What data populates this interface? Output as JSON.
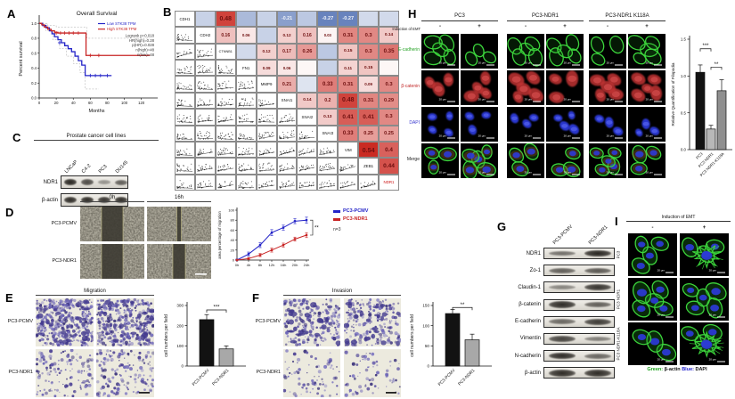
{
  "panels": {
    "a": {
      "label": "A"
    },
    "b": {
      "label": "B"
    },
    "c": {
      "label": "C",
      "title": "Prostate cancer cell lines",
      "lanes": [
        "LNCaP",
        "C4-2",
        "PC3",
        "DU145"
      ],
      "rows": [
        {
          "name": "NDR1",
          "bands": [
            0.95,
            0.7,
            0.2,
            0.55
          ]
        },
        {
          "name": "β-actin",
          "bands": [
            0.9,
            0.9,
            0.85,
            0.9
          ]
        }
      ]
    },
    "d": {
      "label": "D",
      "col_headers": [
        "0h",
        "16h"
      ],
      "row_labels": [
        "PC3-PCMV",
        "PC3-NDR1"
      ],
      "gap_widths": [
        [
          24,
          5
        ],
        [
          24,
          14
        ]
      ]
    },
    "e": {
      "label": "E",
      "title": "Migration",
      "row_labels": [
        "PC3-PCMV",
        "PC3-NDR1"
      ],
      "cell_density": [
        [
          420,
          380
        ],
        [
          130,
          150
        ]
      ]
    },
    "f": {
      "label": "F",
      "title": "Invasion",
      "row_labels": [
        "PC3-PCMV",
        "PC3-NDR1"
      ],
      "cell_density": [
        [
          230,
          210
        ],
        [
          80,
          70
        ]
      ]
    },
    "g": {
      "label": "G",
      "lanes": [
        "PC3-PCMV",
        "PC3-NDR1"
      ],
      "rows": [
        {
          "name": "NDR1",
          "bands": [
            0.45,
            0.95
          ]
        },
        {
          "name": "Zo-1",
          "bands": [
            0.55,
            0.6
          ]
        },
        {
          "name": "Claudin-1",
          "bands": [
            0.3,
            0.85
          ]
        },
        {
          "name": "β-catenin",
          "bands": [
            0.9,
            0.55
          ]
        },
        {
          "name": "E-cadherin",
          "bands": [
            0.5,
            0.8
          ]
        },
        {
          "name": "Vimentin",
          "bands": [
            0.75,
            0.35
          ]
        },
        {
          "name": "N-cadherin",
          "bands": [
            0.9,
            0.5
          ]
        },
        {
          "name": "β-actin",
          "bands": [
            0.9,
            0.9
          ]
        }
      ]
    },
    "h": {
      "label": "H",
      "induction_label": "Induction of EMT",
      "groups": [
        "PC3",
        "PC3-NDR1",
        "PC3-NDR1 K118A"
      ],
      "conditions": [
        "-",
        "+"
      ],
      "rows": [
        {
          "name": "E-cadherin",
          "color": "#28a428",
          "stain": "green"
        },
        {
          "name": "β-catenin",
          "color": "#c22727",
          "stain": "red"
        },
        {
          "name": "DAPI",
          "color": "#3b3bd0",
          "stain": "blue"
        },
        {
          "name": "Merge",
          "color": "#222222",
          "stain": "merge"
        }
      ],
      "scale_label": "20 μm"
    },
    "i": {
      "label": "I",
      "induction_label": "Induction of EMT",
      "conditions": [
        "-",
        "+"
      ],
      "rows": [
        {
          "name": "PC3",
          "spread": [
            0,
            1
          ]
        },
        {
          "name": "PC3 NDR1",
          "spread": [
            0,
            0
          ]
        },
        {
          "name": "PC3 NDR1-K118A",
          "spread": [
            0,
            1
          ]
        }
      ],
      "caption_parts": [
        {
          "text": "Green:",
          "color": "#18a018"
        },
        {
          "text": " β-actin  ",
          "color": "#111111"
        },
        {
          "text": "Blue:",
          "color": "#2020cc"
        },
        {
          "text": " DAPI",
          "color": "#111111"
        }
      ],
      "scale_label": "20 μm"
    }
  },
  "chart_data": {
    "survival": {
      "type": "line",
      "title": "Overall Survival",
      "xlabel": "Months",
      "ylabel": "Percent survival",
      "xticks": [
        0,
        20,
        40,
        60,
        80,
        100,
        120
      ],
      "yticks": [
        "0.0",
        "0.2",
        "0.4",
        "0.6",
        "0.8",
        "1.0"
      ],
      "xlim": [
        0,
        135
      ],
      "ylim": [
        0,
        1.05
      ],
      "series": [
        {
          "name": "Low STK38 TPM",
          "color": "#2424c8",
          "steps": [
            [
              0,
              1
            ],
            [
              4,
              0.97
            ],
            [
              8,
              0.94
            ],
            [
              12,
              0.9
            ],
            [
              15,
              0.86
            ],
            [
              18,
              0.82
            ],
            [
              22,
              0.78
            ],
            [
              26,
              0.74
            ],
            [
              30,
              0.7
            ],
            [
              34,
              0.66
            ],
            [
              38,
              0.62
            ],
            [
              42,
              0.56
            ],
            [
              46,
              0.5
            ],
            [
              50,
              0.44
            ],
            [
              54,
              0.3
            ],
            [
              85,
              0.3
            ]
          ],
          "censors": [
            [
              24,
              0.74
            ],
            [
              60,
              0.3
            ],
            [
              66,
              0.3
            ],
            [
              72,
              0.3
            ],
            [
              80,
              0.3
            ]
          ]
        },
        {
          "name": "High STK38 TPM",
          "color": "#c82424",
          "steps": [
            [
              0,
              1
            ],
            [
              3,
              0.98
            ],
            [
              6,
              0.95
            ],
            [
              10,
              0.92
            ],
            [
              14,
              0.9
            ],
            [
              18,
              0.88
            ],
            [
              22,
              0.87
            ],
            [
              52,
              0.87
            ],
            [
              55,
              0.57
            ],
            [
              130,
              0.57
            ]
          ],
          "censors": [
            [
              20,
              0.87
            ],
            [
              25,
              0.87
            ],
            [
              30,
              0.87
            ],
            [
              35,
              0.87
            ],
            [
              40,
              0.87
            ],
            [
              46,
              0.87
            ],
            [
              60,
              0.57
            ],
            [
              70,
              0.57
            ]
          ]
        }
      ],
      "ci_series": [
        {
          "color": "#aaaaaa",
          "steps": [
            [
              0,
              1
            ],
            [
              8,
              0.9
            ],
            [
              16,
              0.78
            ],
            [
              24,
              0.66
            ],
            [
              32,
              0.56
            ],
            [
              40,
              0.46
            ],
            [
              48,
              0.34
            ],
            [
              54,
              0.12
            ],
            [
              70,
              0.12
            ]
          ]
        },
        {
          "color": "#aaaaaa",
          "steps": [
            [
              0,
              1
            ],
            [
              10,
              0.97
            ],
            [
              20,
              0.95
            ],
            [
              50,
              0.95
            ],
            [
              56,
              0.8
            ],
            [
              130,
              0.8
            ]
          ]
        }
      ],
      "stats": [
        "Logrank p=0.018",
        "HR(high)=0.28",
        "p(HR)=0.028",
        "n(high)=48",
        "n(low)=48"
      ]
    },
    "correlation_matrix": {
      "type": "heatmap",
      "genes": [
        "CDH1",
        "CDH2",
        "CTNNB1",
        "FN1",
        "MMP9",
        "SNAI1",
        "SNAI2",
        "SNAI3",
        "VIM",
        "ZEB1",
        "NDR1"
      ],
      "highlight_gene": "NDR1",
      "cells": [
        [
          0,
          1,
          "~-0.10"
        ],
        [
          0,
          2,
          "0.48"
        ],
        [
          0,
          3,
          "~-0.15"
        ],
        [
          0,
          4,
          "~-0.10"
        ],
        [
          0,
          5,
          "-0.21"
        ],
        [
          0,
          6,
          "~-0.12"
        ],
        [
          0,
          7,
          "-0.27"
        ],
        [
          0,
          8,
          "-0.27"
        ],
        [
          0,
          9,
          "~-0.08"
        ],
        [
          0,
          10,
          "~-0.08"
        ],
        [
          1,
          2,
          "0.16"
        ],
        [
          1,
          3,
          "0.06"
        ],
        [
          1,
          4,
          "~-0.10"
        ],
        [
          1,
          5,
          "0.12"
        ],
        [
          1,
          6,
          "0.16"
        ],
        [
          1,
          7,
          "0.03"
        ],
        [
          1,
          8,
          "0.31"
        ],
        [
          1,
          9,
          "0.3"
        ],
        [
          1,
          10,
          "0.14"
        ],
        [
          2,
          3,
          "~-0.08"
        ],
        [
          2,
          4,
          "0.12"
        ],
        [
          2,
          5,
          "0.17"
        ],
        [
          2,
          6,
          "0.26"
        ],
        [
          2,
          7,
          "~-0.12"
        ],
        [
          2,
          8,
          "0.15"
        ],
        [
          2,
          9,
          "0.3"
        ],
        [
          2,
          10,
          "0.35"
        ],
        [
          3,
          4,
          "0.09"
        ],
        [
          3,
          5,
          "0.06"
        ],
        [
          3,
          6,
          "~0.02"
        ],
        [
          3,
          7,
          "~-0.10"
        ],
        [
          3,
          8,
          "0.11"
        ],
        [
          3,
          9,
          "0.15"
        ],
        [
          3,
          10,
          "~0.02"
        ],
        [
          4,
          5,
          "0.21"
        ],
        [
          4,
          6,
          "~-0.06"
        ],
        [
          4,
          7,
          "0.33"
        ],
        [
          4,
          8,
          "0.31"
        ],
        [
          4,
          9,
          "0.09"
        ],
        [
          4,
          10,
          "0.3"
        ],
        [
          5,
          6,
          "0.14"
        ],
        [
          5,
          7,
          "0.2"
        ],
        [
          5,
          8,
          "0.48"
        ],
        [
          5,
          9,
          "0.31"
        ],
        [
          5,
          10,
          "0.29"
        ],
        [
          6,
          7,
          "0.13"
        ],
        [
          6,
          8,
          "0.41"
        ],
        [
          6,
          9,
          "0.41"
        ],
        [
          6,
          10,
          "0.3"
        ],
        [
          7,
          8,
          "0.33"
        ],
        [
          7,
          9,
          "0.25"
        ],
        [
          7,
          10,
          "0.25"
        ],
        [
          8,
          9,
          "0.54"
        ],
        [
          8,
          10,
          "0.4"
        ],
        [
          9,
          10,
          "0.44"
        ]
      ]
    },
    "migration_curve": {
      "type": "line",
      "x": [
        "0h",
        "4h",
        "8h",
        "12h",
        "16h",
        "20h",
        "24h"
      ],
      "series": [
        {
          "name": "PC3-PCMV",
          "color": "#2424c8",
          "values": [
            0,
            12,
            30,
            55,
            65,
            78,
            80
          ],
          "errors": [
            2,
            4,
            5,
            6,
            5,
            5,
            6
          ]
        },
        {
          "name": "PC3-NDR1",
          "color": "#c82424",
          "values": [
            0,
            3,
            10,
            20,
            30,
            42,
            50
          ],
          "errors": [
            1,
            2,
            3,
            4,
            4,
            4,
            5
          ]
        }
      ],
      "ylabel": "area percentage of migration",
      "ylim": [
        0,
        100
      ],
      "yticks": [
        0,
        20,
        40,
        60,
        80,
        100
      ],
      "sig": "**",
      "note": "n=3"
    },
    "migration_bar": {
      "type": "bar",
      "categories": [
        "PC3-PCMV",
        "PC3-NDR1"
      ],
      "values": [
        230,
        85
      ],
      "errors": [
        25,
        15
      ],
      "colors": [
        "#121212",
        "#a8a8a8"
      ],
      "ylabel": "cell numbers per field",
      "ylim": [
        0,
        300
      ],
      "yticks": [
        0,
        100,
        200,
        300
      ],
      "sigs": [
        {
          "a": 0,
          "b": 1,
          "y": 278,
          "label": "***"
        }
      ]
    },
    "invasion_bar": {
      "type": "bar",
      "categories": [
        "PC3-PCMV",
        "PC3-NDR1"
      ],
      "values": [
        130,
        65
      ],
      "errors": [
        10,
        14
      ],
      "colors": [
        "#121212",
        "#a8a8a8"
      ],
      "ylabel": "cell numbers per field",
      "ylim": [
        0,
        150
      ],
      "yticks": [
        0,
        50,
        100,
        150
      ],
      "sigs": [
        {
          "a": 0,
          "b": 1,
          "y": 145,
          "label": "**"
        }
      ]
    },
    "filopodia_bar": {
      "type": "bar",
      "categories": [
        "PC3",
        "PC3 NDR1",
        "PC3 NDR1-K118A"
      ],
      "values": [
        1.05,
        0.28,
        0.8
      ],
      "errors": [
        0.1,
        0.05,
        0.15
      ],
      "colors": [
        "#121212",
        "#b8b8b8",
        "#8f8f8f"
      ],
      "ylabel": "Relative Quantification of Filopodia",
      "ylim": [
        0,
        1.5
      ],
      "yticks": [
        "0.0",
        "0.5",
        "1.0",
        "1.5"
      ],
      "sigs": [
        {
          "a": 0,
          "b": 1,
          "y": 1.37,
          "label": "***"
        },
        {
          "a": 1,
          "b": 2,
          "y": 1.12,
          "label": "**"
        }
      ]
    }
  }
}
